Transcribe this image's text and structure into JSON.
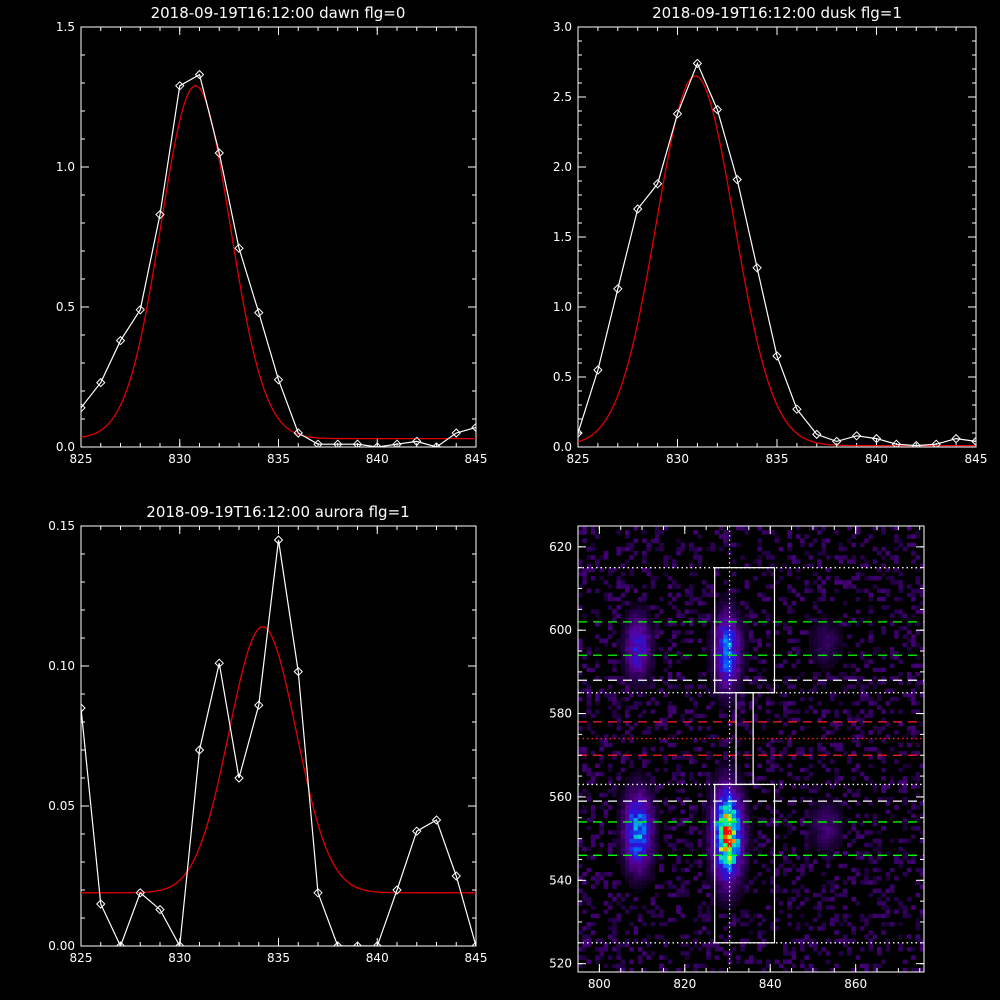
{
  "chart_data": [
    {
      "type": "line",
      "title": "2018-09-19T16:12:00 dawn flg=0",
      "xlim": [
        825,
        845
      ],
      "ylim": [
        0,
        1.5
      ],
      "xticks": [
        "825",
        "830",
        "835",
        "840",
        "845"
      ],
      "xtick_values": [
        825,
        830,
        835,
        840,
        845
      ],
      "yticks": [
        "0.0",
        "0.5",
        "1.0",
        "1.5"
      ],
      "ytick_values": [
        0,
        0.5,
        1.0,
        1.5
      ],
      "series": [
        {
          "color": "#ffffff",
          "marker": "diamond",
          "x": [
            825,
            826,
            827,
            828,
            829,
            830,
            831,
            832,
            833,
            834,
            835,
            836,
            837,
            838,
            839,
            840,
            841,
            842,
            843,
            844,
            845
          ],
          "y": [
            0.14,
            0.23,
            0.38,
            0.49,
            0.83,
            1.29,
            1.33,
            1.05,
            0.71,
            0.48,
            0.24,
            0.05,
            0.01,
            0.01,
            0.01,
            0.0,
            0.01,
            0.02,
            0.0,
            0.05,
            0.07
          ]
        },
        {
          "color": "#e00000",
          "model": "gaussian",
          "amplitude": 1.26,
          "center": 830.8,
          "sigma": 1.75,
          "offset": 0.03
        }
      ]
    },
    {
      "type": "line",
      "title": "2018-09-19T16:12:00 dusk flg=1",
      "xlim": [
        825,
        845
      ],
      "ylim": [
        0,
        3.0
      ],
      "xticks": [
        "825",
        "830",
        "835",
        "840",
        "845"
      ],
      "xtick_values": [
        825,
        830,
        835,
        840,
        845
      ],
      "yticks": [
        "0.0",
        "0.5",
        "1.0",
        "1.5",
        "2.0",
        "2.5",
        "3.0"
      ],
      "ytick_values": [
        0,
        0.5,
        1.0,
        1.5,
        2.0,
        2.5,
        3.0
      ],
      "series": [
        {
          "color": "#ffffff",
          "marker": "diamond",
          "x": [
            825,
            826,
            827,
            828,
            829,
            830,
            831,
            832,
            833,
            834,
            835,
            836,
            837,
            838,
            839,
            840,
            841,
            842,
            843,
            844,
            845
          ],
          "y": [
            0.1,
            0.55,
            1.13,
            1.7,
            1.88,
            2.38,
            2.74,
            2.41,
            1.91,
            1.28,
            0.65,
            0.27,
            0.09,
            0.04,
            0.08,
            0.06,
            0.02,
            0.01,
            0.02,
            0.06,
            0.04
          ]
        },
        {
          "color": "#e00000",
          "model": "gaussian",
          "amplitude": 2.64,
          "center": 830.9,
          "sigma": 1.95,
          "offset": 0.01
        }
      ]
    },
    {
      "type": "line",
      "title": "2018-09-19T16:12:00 aurora flg=1",
      "xlim": [
        825,
        845
      ],
      "ylim": [
        0,
        0.15
      ],
      "xticks": [
        "825",
        "830",
        "835",
        "840",
        "845"
      ],
      "xtick_values": [
        825,
        830,
        835,
        840,
        845
      ],
      "yticks": [
        "0.00",
        "0.05",
        "0.10",
        "0.15"
      ],
      "ytick_values": [
        0,
        0.05,
        0.1,
        0.15
      ],
      "series": [
        {
          "color": "#ffffff",
          "marker": "diamond",
          "x": [
            825,
            826,
            827,
            828,
            829,
            830,
            831,
            832,
            833,
            834,
            835,
            836,
            837,
            838,
            839,
            840,
            841,
            842,
            843,
            844,
            845
          ],
          "y": [
            0.085,
            0.015,
            0.0,
            0.019,
            0.013,
            0.0,
            0.07,
            0.101,
            0.06,
            0.086,
            0.145,
            0.098,
            0.019,
            0.0,
            0.0,
            0.0,
            0.02,
            0.041,
            0.045,
            0.025,
            0.0
          ]
        },
        {
          "color": "#e00000",
          "model": "gaussian",
          "amplitude": 0.095,
          "center": 834.2,
          "sigma": 1.7,
          "offset": 0.019
        }
      ]
    },
    {
      "type": "heatmap",
      "xlim": [
        795,
        876
      ],
      "ylim": [
        518,
        625
      ],
      "xticks": [
        "800",
        "820",
        "840",
        "860"
      ],
      "xtick_values": [
        800,
        820,
        840,
        860
      ],
      "yticks": [
        "520",
        "540",
        "560",
        "580",
        "600",
        "620"
      ],
      "ytick_values": [
        520,
        540,
        560,
        580,
        600,
        620
      ],
      "colormap": "rainbow",
      "peak_pixel": [
        830,
        551
      ],
      "blobs": [
        {
          "x": 830,
          "y": 551,
          "sx": 2.2,
          "sy": 7,
          "peak": 1.0
        },
        {
          "x": 830,
          "y": 595,
          "sx": 2.0,
          "sy": 6,
          "peak": 0.55
        },
        {
          "x": 809,
          "y": 552,
          "sx": 2.2,
          "sy": 6,
          "peak": 0.6
        },
        {
          "x": 809,
          "y": 596,
          "sx": 2.0,
          "sy": 5,
          "peak": 0.38
        },
        {
          "x": 853,
          "y": 553,
          "sx": 2.5,
          "sy": 4,
          "peak": 0.16
        },
        {
          "x": 853,
          "y": 597,
          "sx": 2.5,
          "sy": 4,
          "peak": 0.12
        }
      ],
      "background_level": 0.05,
      "boxes": [
        {
          "x0": 827,
          "x1": 841,
          "y0": 585,
          "y1": 615,
          "color": "#ffffff"
        },
        {
          "x0": 832,
          "x1": 836,
          "y0": 563,
          "y1": 585,
          "color": "#ffffff"
        },
        {
          "x0": 827,
          "x1": 841,
          "y0": 525,
          "y1": 563,
          "color": "#ffffff"
        }
      ],
      "vertical_line": {
        "x": 830.5,
        "color": "#ffffff",
        "style": "dotted"
      },
      "horizontal_lines": [
        {
          "y": 615,
          "color": "#ffffff",
          "style": "dotted"
        },
        {
          "y": 602,
          "color": "#00ff00",
          "style": "dashed"
        },
        {
          "y": 594,
          "color": "#00ff00",
          "style": "dashed"
        },
        {
          "y": 588,
          "color": "#ffffff",
          "style": "dashed"
        },
        {
          "y": 585,
          "color": "#ffffff",
          "style": "dotted"
        },
        {
          "y": 578,
          "color": "#ff2020",
          "style": "dashed"
        },
        {
          "y": 574,
          "color": "#ff2020",
          "style": "dotted"
        },
        {
          "y": 570,
          "color": "#ff2020",
          "style": "dashed"
        },
        {
          "y": 563,
          "color": "#ffffff",
          "style": "dotted"
        },
        {
          "y": 559,
          "color": "#ffffff",
          "style": "dashed"
        },
        {
          "y": 554,
          "color": "#00ff00",
          "style": "dashed"
        },
        {
          "y": 546,
          "color": "#00ff00",
          "style": "dashed"
        },
        {
          "y": 525,
          "color": "#ffffff",
          "style": "dotted"
        }
      ]
    }
  ]
}
